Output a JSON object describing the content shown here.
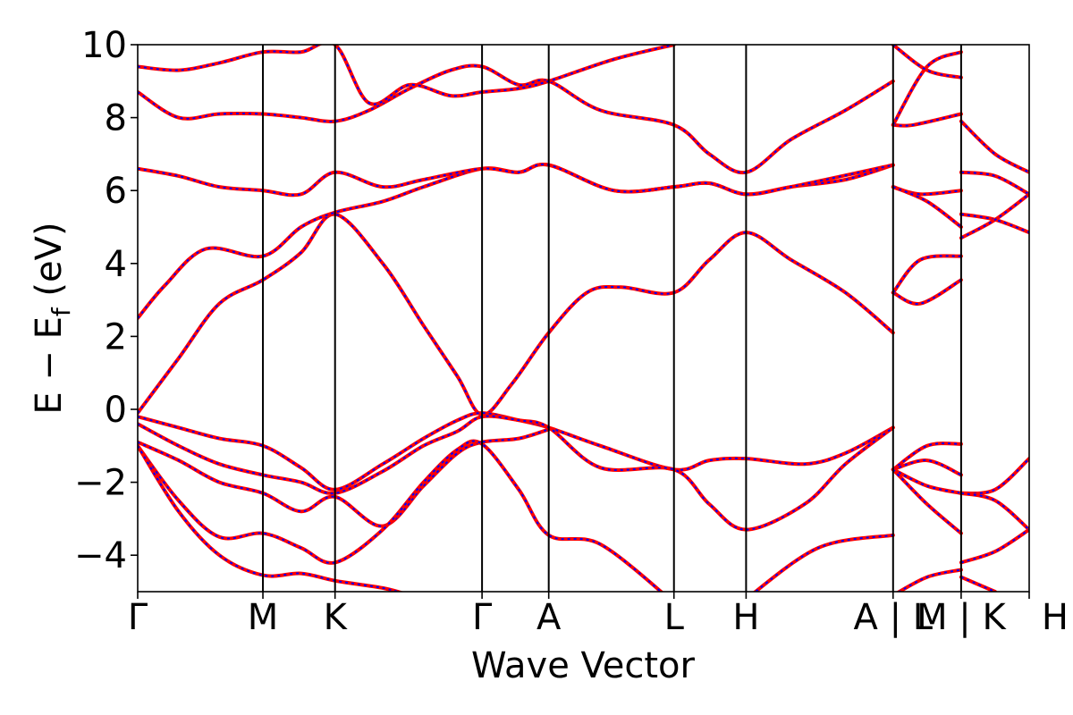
{
  "chart_data": {
    "type": "line",
    "title": "",
    "xlabel": "Wave Vector",
    "ylabel_parts": {
      "main": "E − E",
      "sub": "f",
      "unit": " (eV)"
    },
    "ylim": [
      -5,
      10
    ],
    "yticks": [
      10,
      8,
      6,
      4,
      2,
      0,
      -2,
      -4
    ],
    "ytick_labels": [
      "10",
      "8",
      "6",
      "4",
      "2",
      "0",
      "−2",
      "−4"
    ],
    "kpath_x": [
      0.0,
      0.92,
      1.45,
      2.53,
      3.02,
      3.94,
      4.47,
      5.55,
      6.05,
      6.55
    ],
    "kpath_labels": [
      "Γ",
      "M",
      "K",
      "Γ",
      "A",
      "L",
      "H",
      "A | L",
      "M | K",
      "H"
    ],
    "break_positions": [
      5.55,
      6.05
    ],
    "grid": false,
    "legend": "none",
    "colors": {
      "line": "#ff0000",
      "dash": "#0000ff",
      "axis": "#000000"
    },
    "bands": [
      {
        "name": "",
        "points": [
          [
            0.0,
            -0.1
          ],
          [
            0.3,
            1.4
          ],
          [
            0.6,
            2.9
          ],
          [
            0.92,
            3.55
          ],
          [
            1.2,
            4.3
          ],
          [
            1.45,
            5.35
          ],
          [
            1.8,
            4.0
          ],
          [
            2.1,
            2.3
          ],
          [
            2.35,
            0.9
          ],
          [
            2.53,
            -0.15
          ],
          [
            2.75,
            0.7
          ],
          [
            3.02,
            2.1
          ],
          [
            3.3,
            3.2
          ],
          [
            3.55,
            3.35
          ],
          [
            3.94,
            3.2
          ],
          [
            4.2,
            4.1
          ],
          [
            4.47,
            4.85
          ],
          [
            4.8,
            4.1
          ],
          [
            5.2,
            3.2
          ],
          [
            5.55,
            2.1
          ]
        ]
      },
      {
        "name": "",
        "points": [
          [
            0.0,
            2.5
          ],
          [
            0.2,
            3.4
          ],
          [
            0.5,
            4.4
          ],
          [
            0.92,
            4.2
          ],
          [
            1.2,
            5.0
          ],
          [
            1.45,
            5.4
          ],
          [
            1.8,
            5.7
          ],
          [
            2.1,
            6.1
          ],
          [
            2.53,
            6.6
          ],
          [
            2.8,
            6.5
          ],
          [
            3.02,
            6.7
          ],
          [
            3.5,
            6.0
          ],
          [
            3.94,
            6.1
          ],
          [
            4.2,
            6.2
          ],
          [
            4.47,
            5.9
          ],
          [
            4.8,
            6.1
          ],
          [
            5.2,
            6.3
          ],
          [
            5.55,
            6.7
          ]
        ]
      },
      {
        "name": "",
        "points": [
          [
            0.0,
            6.6
          ],
          [
            0.3,
            6.4
          ],
          [
            0.6,
            6.1
          ],
          [
            0.92,
            6.0
          ],
          [
            1.2,
            5.9
          ],
          [
            1.45,
            6.5
          ],
          [
            1.8,
            6.1
          ],
          [
            2.1,
            6.3
          ],
          [
            2.53,
            6.6
          ],
          [
            2.8,
            6.5
          ],
          [
            3.02,
            6.7
          ],
          [
            3.5,
            6.0
          ],
          [
            3.94,
            6.1
          ],
          [
            4.2,
            6.2
          ],
          [
            4.47,
            5.9
          ],
          [
            4.8,
            6.1
          ],
          [
            5.55,
            6.7
          ]
        ]
      },
      {
        "name": "",
        "points": [
          [
            0.0,
            8.7
          ],
          [
            0.3,
            8.0
          ],
          [
            0.6,
            8.1
          ],
          [
            0.92,
            8.1
          ],
          [
            1.2,
            8.0
          ],
          [
            1.45,
            7.9
          ],
          [
            1.7,
            8.2
          ],
          [
            2.0,
            8.8
          ],
          [
            2.3,
            9.3
          ],
          [
            2.53,
            9.4
          ],
          [
            2.8,
            8.9
          ],
          [
            3.02,
            9.0
          ],
          [
            3.4,
            8.2
          ],
          [
            3.94,
            7.8
          ],
          [
            4.2,
            7.0
          ],
          [
            4.47,
            6.5
          ],
          [
            4.8,
            7.4
          ],
          [
            5.2,
            8.2
          ],
          [
            5.55,
            9.0
          ]
        ]
      },
      {
        "name": "",
        "points": [
          [
            0.0,
            9.4
          ],
          [
            0.3,
            9.3
          ],
          [
            0.6,
            9.5
          ],
          [
            0.92,
            9.8
          ],
          [
            1.2,
            9.8
          ],
          [
            1.45,
            10.0
          ],
          [
            1.7,
            8.4
          ],
          [
            2.0,
            8.9
          ],
          [
            2.3,
            8.6
          ],
          [
            2.53,
            8.7
          ],
          [
            2.8,
            8.8
          ],
          [
            3.02,
            9.0
          ],
          [
            3.5,
            9.6
          ],
          [
            3.94,
            10.0
          ]
        ]
      },
      {
        "name": "",
        "points": [
          [
            0.0,
            -0.2
          ],
          [
            0.3,
            -0.5
          ],
          [
            0.6,
            -0.8
          ],
          [
            0.92,
            -1.0
          ],
          [
            1.2,
            -1.6
          ],
          [
            1.45,
            -2.2
          ],
          [
            1.8,
            -1.5
          ],
          [
            2.1,
            -0.8
          ],
          [
            2.35,
            -0.3
          ],
          [
            2.53,
            -0.1
          ],
          [
            2.8,
            -0.3
          ],
          [
            3.02,
            -0.5
          ],
          [
            3.4,
            -1.0
          ],
          [
            3.94,
            -1.65
          ],
          [
            4.2,
            -1.4
          ],
          [
            4.47,
            -1.35
          ],
          [
            4.9,
            -1.5
          ],
          [
            5.2,
            -1.2
          ],
          [
            5.55,
            -0.5
          ]
        ]
      },
      {
        "name": "",
        "points": [
          [
            0.0,
            -0.4
          ],
          [
            0.3,
            -1.0
          ],
          [
            0.6,
            -1.5
          ],
          [
            0.92,
            -1.8
          ],
          [
            1.2,
            -2.0
          ],
          [
            1.45,
            -2.3
          ],
          [
            1.8,
            -1.7
          ],
          [
            2.1,
            -1.0
          ],
          [
            2.35,
            -0.6
          ],
          [
            2.53,
            -0.2
          ],
          [
            2.8,
            -0.3
          ],
          [
            3.02,
            -0.5
          ],
          [
            3.4,
            -1.6
          ],
          [
            3.94,
            -1.65
          ],
          [
            4.2,
            -2.6
          ],
          [
            4.47,
            -3.3
          ],
          [
            4.9,
            -2.6
          ],
          [
            5.2,
            -1.5
          ],
          [
            5.55,
            -0.5
          ]
        ]
      },
      {
        "name": "",
        "points": [
          [
            0.0,
            -0.9
          ],
          [
            0.3,
            -1.4
          ],
          [
            0.6,
            -2.0
          ],
          [
            0.92,
            -2.3
          ],
          [
            1.2,
            -2.8
          ],
          [
            1.45,
            -2.4
          ],
          [
            1.8,
            -3.2
          ],
          [
            2.1,
            -2.1
          ],
          [
            2.35,
            -1.2
          ],
          [
            2.53,
            -0.9
          ],
          [
            2.8,
            -0.8
          ],
          [
            3.02,
            -0.55
          ]
        ]
      },
      {
        "name": "",
        "points": [
          [
            0.0,
            -1.0
          ],
          [
            0.3,
            -2.5
          ],
          [
            0.6,
            -3.5
          ],
          [
            0.92,
            -3.4
          ],
          [
            1.2,
            -3.8
          ],
          [
            1.45,
            -4.2
          ],
          [
            1.8,
            -3.3
          ],
          [
            2.1,
            -2.0
          ],
          [
            2.35,
            -1.1
          ],
          [
            2.53,
            -0.95
          ],
          [
            2.8,
            -2.2
          ],
          [
            3.02,
            -3.45
          ],
          [
            3.4,
            -3.7
          ],
          [
            3.94,
            -5.3
          ]
        ]
      },
      {
        "name": "",
        "points": [
          [
            0.0,
            -1.0
          ],
          [
            0.3,
            -2.8
          ],
          [
            0.6,
            -4.0
          ],
          [
            0.92,
            -4.55
          ],
          [
            1.2,
            -4.5
          ],
          [
            1.45,
            -4.7
          ],
          [
            1.8,
            -4.9
          ],
          [
            2.0,
            -5.1
          ]
        ]
      },
      {
        "name": "",
        "points": [
          [
            4.47,
            -5.2
          ],
          [
            5.0,
            -3.8
          ],
          [
            5.55,
            -3.45
          ]
        ]
      },
      {
        "name": "",
        "points": [
          [
            5.55,
            7.8
          ],
          [
            5.7,
            7.8
          ],
          [
            6.05,
            8.1
          ]
        ]
      },
      {
        "name": "",
        "points": [
          [
            5.55,
            7.8
          ],
          [
            5.8,
            9.4
          ],
          [
            6.05,
            9.8
          ]
        ]
      },
      {
        "name": "",
        "points": [
          [
            5.55,
            10.0
          ],
          [
            5.8,
            9.3
          ],
          [
            6.05,
            9.1
          ]
        ]
      },
      {
        "name": "",
        "points": [
          [
            5.55,
            6.1
          ],
          [
            5.75,
            5.9
          ],
          [
            6.05,
            6.0
          ]
        ]
      },
      {
        "name": "",
        "points": [
          [
            5.55,
            6.1
          ],
          [
            5.8,
            5.7
          ],
          [
            6.05,
            5.0
          ]
        ]
      },
      {
        "name": "",
        "points": [
          [
            5.55,
            3.2
          ],
          [
            5.75,
            2.9
          ],
          [
            6.05,
            3.55
          ]
        ]
      },
      {
        "name": "",
        "points": [
          [
            5.55,
            3.2
          ],
          [
            5.75,
            4.1
          ],
          [
            6.05,
            4.2
          ]
        ]
      },
      {
        "name": "",
        "points": [
          [
            5.55,
            -1.65
          ],
          [
            5.8,
            -1.0
          ],
          [
            6.05,
            -0.95
          ]
        ]
      },
      {
        "name": "",
        "points": [
          [
            5.55,
            -1.65
          ],
          [
            5.8,
            -1.4
          ],
          [
            6.05,
            -1.8
          ]
        ]
      },
      {
        "name": "",
        "points": [
          [
            5.55,
            -1.65
          ],
          [
            5.8,
            -2.1
          ],
          [
            6.05,
            -2.3
          ]
        ]
      },
      {
        "name": "",
        "points": [
          [
            5.55,
            -1.65
          ],
          [
            5.8,
            -2.6
          ],
          [
            6.05,
            -3.4
          ]
        ]
      },
      {
        "name": "",
        "points": [
          [
            5.55,
            -5.1
          ],
          [
            5.8,
            -4.6
          ],
          [
            6.05,
            -4.4
          ]
        ]
      },
      {
        "name": "",
        "points": [
          [
            6.05,
            7.9
          ],
          [
            6.3,
            7.0
          ],
          [
            6.55,
            6.5
          ]
        ]
      },
      {
        "name": "",
        "points": [
          [
            6.05,
            6.5
          ],
          [
            6.3,
            6.4
          ],
          [
            6.55,
            5.9
          ]
        ]
      },
      {
        "name": "",
        "points": [
          [
            6.05,
            5.35
          ],
          [
            6.3,
            5.2
          ],
          [
            6.55,
            4.85
          ]
        ]
      },
      {
        "name": "",
        "points": [
          [
            6.05,
            4.7
          ],
          [
            6.3,
            5.2
          ],
          [
            6.55,
            5.9
          ]
        ]
      },
      {
        "name": "",
        "points": [
          [
            6.05,
            -2.3
          ],
          [
            6.3,
            -2.2
          ],
          [
            6.55,
            -1.35
          ]
        ]
      },
      {
        "name": "",
        "points": [
          [
            6.05,
            -2.3
          ],
          [
            6.3,
            -2.5
          ],
          [
            6.55,
            -3.3
          ]
        ]
      },
      {
        "name": "",
        "points": [
          [
            6.05,
            -4.2
          ],
          [
            6.3,
            -3.9
          ],
          [
            6.55,
            -3.3
          ]
        ]
      },
      {
        "name": "",
        "points": [
          [
            6.05,
            -4.6
          ],
          [
            6.3,
            -5.0
          ]
        ]
      }
    ]
  }
}
